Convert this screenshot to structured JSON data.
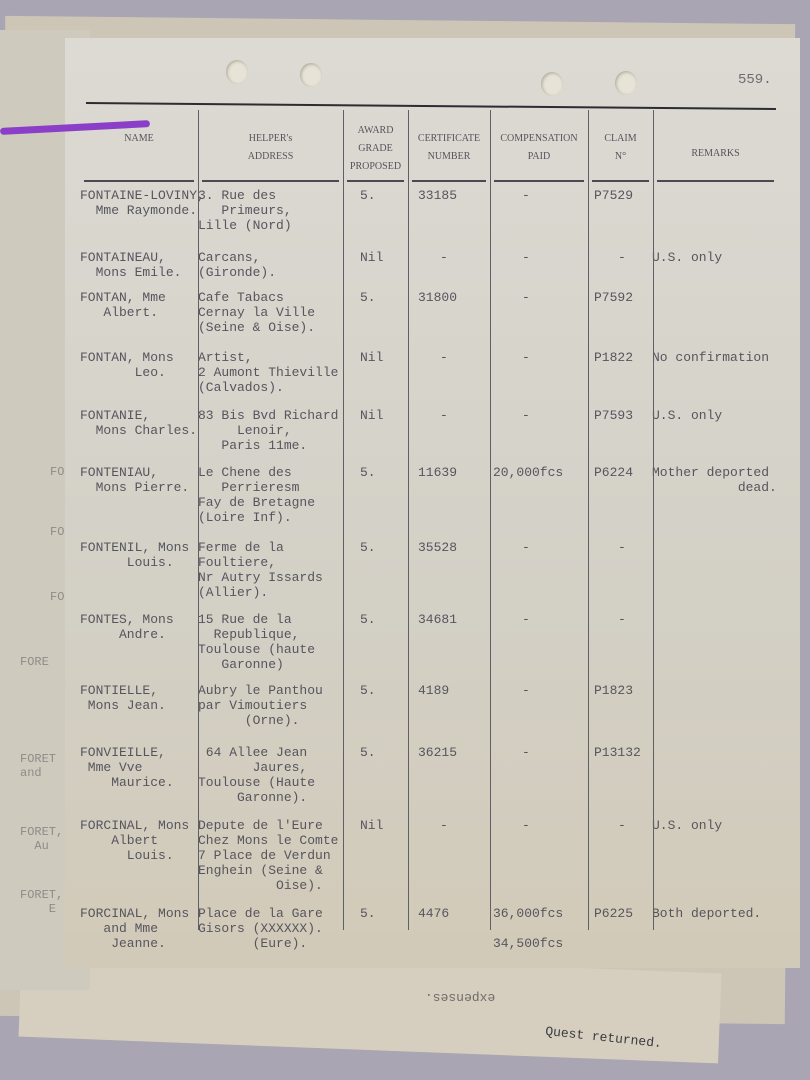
{
  "page_number": "559.",
  "headers": {
    "name": [
      "",
      "NAME"
    ],
    "address": [
      "HELPER's",
      "ADDRESS"
    ],
    "award": [
      "AWARD",
      "GRADE",
      "PROPOSED"
    ],
    "certificate": [
      "CERTIFICATE",
      "NUMBER"
    ],
    "compensation": [
      "COMPENSATION",
      "PAID"
    ],
    "claim": [
      "CLAIM",
      "N°"
    ],
    "remarks": [
      "REMARKS"
    ]
  },
  "rows": [
    {
      "name": "FONTAINE-LOVINY,\n  Mme Raymonde.",
      "address": "3. Rue des\n   Primeurs,\nLille (Nord)",
      "award": "5.",
      "certificate": "33185",
      "compensation": "-",
      "claim": "P7529",
      "remarks": ""
    },
    {
      "name": "FONTAINEAU,\n  Mons Emile.",
      "address": "Carcans,\n(Gironde).",
      "award": "Nil",
      "certificate": "-",
      "compensation": "-",
      "claim": "-",
      "remarks": "U.S. only"
    },
    {
      "name": "FONTAN, Mme\n   Albert.",
      "address": "Cafe Tabacs\nCernay la Ville\n(Seine & Oise).",
      "award": "5.",
      "certificate": "31800",
      "compensation": "-",
      "claim": "P7592",
      "remarks": ""
    },
    {
      "name": "FONTAN, Mons\n       Leo.",
      "address": "Artist,\n2 Aumont Thieville\n(Calvados).",
      "award": "Nil",
      "certificate": "-",
      "compensation": "-",
      "claim": "P1822",
      "remarks": "No confirmation"
    },
    {
      "name": "FONTANIE,\n  Mons Charles.",
      "address": "83 Bis Bvd Richard\n     Lenoir,\n   Paris 11me.",
      "award": "Nil",
      "certificate": "-",
      "compensation": "-",
      "claim": "P7593",
      "remarks": "U.S. only"
    },
    {
      "name": "FONTENIAU,\n  Mons Pierre.",
      "address": "Le Chene des\n   Perrieresm\nFay de Bretagne\n(Loire Inf).",
      "award": "5.",
      "certificate": "11639",
      "compensation": "20,000fcs",
      "claim": "P6224",
      "remarks": "Mother deported\n           dead."
    },
    {
      "name": "FONTENIL, Mons\n      Louis.",
      "address": "Ferme de la\nFoultiere,\nNr Autry Issards\n(Allier).",
      "award": "5.",
      "certificate": "35528",
      "compensation": "-",
      "claim": "-",
      "remarks": ""
    },
    {
      "name": "FONTES, Mons\n     Andre.",
      "address": "15 Rue de la\n  Republique,\nToulouse (haute\n   Garonne)",
      "award": "5.",
      "certificate": "34681",
      "compensation": "-",
      "claim": "-",
      "remarks": ""
    },
    {
      "name": "FONTIELLE,\n Mons Jean.",
      "address": "Aubry le Panthou\npar Vimoutiers\n      (Orne).",
      "award": "5.",
      "certificate": "4189",
      "compensation": "-",
      "claim": "P1823",
      "remarks": ""
    },
    {
      "name": "FONVIEILLE,\n Mme Vve\n    Maurice.",
      "address": " 64 Allee Jean\n       Jaures,\nToulouse (Haute\n     Garonne).",
      "award": "5.",
      "certificate": "36215",
      "compensation": "-",
      "claim": "P13132",
      "remarks": ""
    },
    {
      "name": "FORCINAL, Mons\n    Albert\n      Louis.",
      "address": "Depute de l'Eure\nChez Mons le Comte\n7 Place de Verdun\nEnghein (Seine &\n          Oise).",
      "award": "Nil",
      "certificate": "-",
      "compensation": "-",
      "claim": "-",
      "remarks": "U.S. only"
    },
    {
      "name": "FORCINAL, Mons\n   and Mme\n    Jeanne.",
      "address": "Place de la Gare\nGisors (XXXXXX).\n       (Eure).",
      "award": "5.",
      "certificate": "4476",
      "compensation": "36,000fcs\n\n34,500fcs",
      "claim": "P6225",
      "remarks": "Both deported."
    }
  ],
  "background_sheet_fragments": [
    "FO",
    "FOR",
    "FORE",
    "FORE",
    "FORET\nand",
    "FORET,\n  Au",
    "FORET,\n    E"
  ],
  "underneath_text": [
    "expenses.",
    "Quest returned."
  ],
  "colors": {
    "paper": "#d8d5cc",
    "string": "#8b3fc8",
    "ink": "#56555e",
    "background": "#a9a5b3"
  }
}
